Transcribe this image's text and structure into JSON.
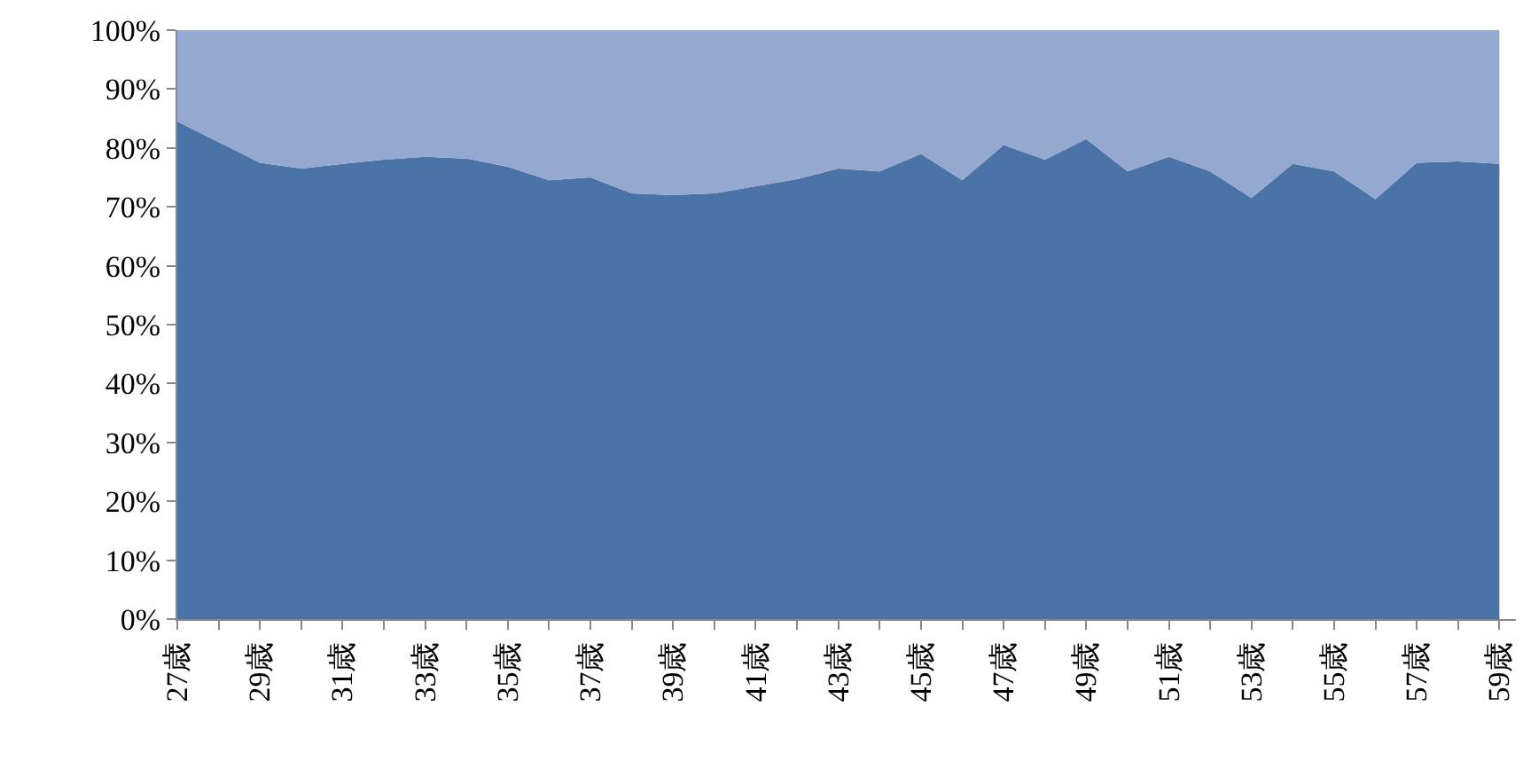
{
  "chart_data": {
    "type": "area",
    "stacked": true,
    "categories": [
      "27歳",
      null,
      "29歳",
      null,
      "31歳",
      null,
      "33歳",
      null,
      "35歳",
      null,
      "37歳",
      null,
      "39歳",
      null,
      "41歳",
      null,
      "43歳",
      null,
      "45歳",
      null,
      "47歳",
      null,
      "49歳",
      null,
      "51歳",
      null,
      "53歳",
      null,
      "55歳",
      null,
      "57歳",
      null,
      "59歳"
    ],
    "series": [
      {
        "color": "#4a73a8",
        "values": [
          84.5,
          81,
          77.5,
          76.5,
          77.3,
          78,
          78.5,
          78.2,
          76.8,
          74.5,
          75,
          72.3,
          72,
          72.3,
          73.5,
          74.7,
          76.5,
          76,
          79,
          74.5,
          80.5,
          78,
          81.5,
          76,
          78.5,
          76,
          71.5,
          77.3,
          76,
          71.3,
          77.5,
          77.7,
          77.3
        ]
      },
      {
        "color": "#94a8d0",
        "values": [
          15.5,
          19,
          22.5,
          23.5,
          22.7,
          22,
          21.5,
          21.8,
          23.2,
          25.5,
          25,
          27.7,
          28,
          27.7,
          26.5,
          25.3,
          23.5,
          24,
          21,
          25.5,
          19.5,
          22,
          18.5,
          24,
          21.5,
          24,
          28.5,
          22.7,
          24,
          28.7,
          22.5,
          22.3,
          22.7
        ]
      }
    ],
    "ylim": [
      0,
      100
    ],
    "yticks": [
      {
        "value": 0,
        "label": "0%"
      },
      {
        "value": 10,
        "label": "10%"
      },
      {
        "value": 20,
        "label": "20%"
      },
      {
        "value": 30,
        "label": "30%"
      },
      {
        "value": 40,
        "label": "40%"
      },
      {
        "value": 50,
        "label": "50%"
      },
      {
        "value": 60,
        "label": "60%"
      },
      {
        "value": 70,
        "label": "70%"
      },
      {
        "value": 80,
        "label": "80%"
      },
      {
        "value": 90,
        "label": "90%"
      },
      {
        "value": 100,
        "label": "100%"
      }
    ]
  }
}
